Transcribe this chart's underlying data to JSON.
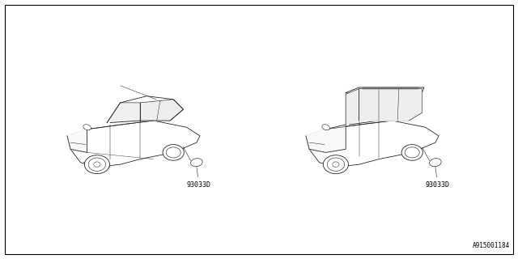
{
  "bg_color": "#ffffff",
  "border_color": "#000000",
  "fig_width": 6.4,
  "fig_height": 3.2,
  "dpi": 100,
  "part_label_left": "93033D",
  "part_label_right": "93033D",
  "diagram_id": "A915001184",
  "line_color": "#1a1a1a",
  "text_color": "#000000",
  "label_fontsize": 6.0,
  "id_fontsize": 5.5
}
